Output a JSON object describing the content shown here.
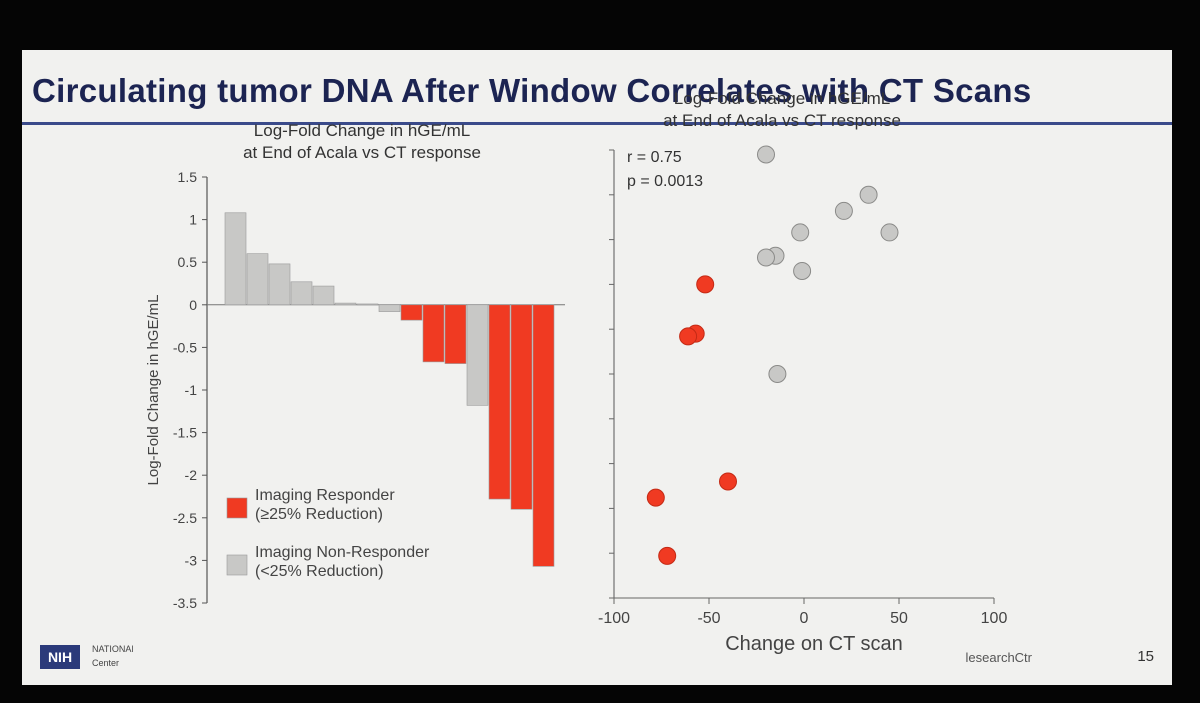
{
  "slide": {
    "title": "Circulating tumor DNA After Window Correlates with CT Scans",
    "page_number": "15",
    "footer_logo": "NIH",
    "footer_org_line1": "NATIONAl",
    "footer_org_line2": "Center",
    "footer_handle": "lesearchCtr",
    "colors": {
      "responder": "#f03a22",
      "non_responder": "#c8c8c6",
      "title": "#1c2452"
    }
  },
  "chart_data": [
    {
      "type": "bar",
      "title_line1": "Log-Fold Change in hGE/mL",
      "title_line2": "at End of Acala vs CT response",
      "xlabel": "",
      "ylabel": "Log-Fold Change in hGE/mL",
      "ylim": [
        -3.5,
        1.5
      ],
      "yticks": [
        "1.5",
        "1",
        "0.5",
        "0",
        "-0.5",
        "-1",
        "-1.5",
        "-2",
        "-2.5",
        "-3",
        "-3.5"
      ],
      "bars": [
        {
          "value": 1.08,
          "group": "non_responder"
        },
        {
          "value": 0.6,
          "group": "non_responder"
        },
        {
          "value": 0.48,
          "group": "non_responder"
        },
        {
          "value": 0.27,
          "group": "non_responder"
        },
        {
          "value": 0.22,
          "group": "non_responder"
        },
        {
          "value": 0.02,
          "group": "non_responder"
        },
        {
          "value": 0.01,
          "group": "non_responder"
        },
        {
          "value": -0.08,
          "group": "non_responder"
        },
        {
          "value": -0.18,
          "group": "responder"
        },
        {
          "value": -0.67,
          "group": "responder"
        },
        {
          "value": -0.69,
          "group": "responder"
        },
        {
          "value": -1.18,
          "group": "non_responder"
        },
        {
          "value": -2.28,
          "group": "responder"
        },
        {
          "value": -2.4,
          "group": "responder"
        },
        {
          "value": -3.07,
          "group": "responder"
        }
      ],
      "legend": [
        {
          "group": "responder",
          "label_line1": "Imaging Responder",
          "label_line2": "(≥25% Reduction)"
        },
        {
          "group": "non_responder",
          "label_line1": "Imaging Non-Responder",
          "label_line2": "(<25% Reduction)"
        }
      ],
      "legend_position": "bottom-left",
      "grid": false
    },
    {
      "type": "scatter",
      "title_line1": "Log-Fold Change in hGE/mL",
      "title_line2": "at End of Acala vs CT response",
      "xlabel": "Change on CT scan",
      "ylabel": "",
      "xlim": [
        -100,
        100
      ],
      "ylim": [
        -3.5,
        1.5
      ],
      "xticks": [
        "-100",
        "-50",
        "0",
        "50",
        "100"
      ],
      "annotation_r": "r = 0.75",
      "annotation_p": "p = 0.0013",
      "points": [
        {
          "x": -20,
          "y": 1.45,
          "group": "non_responder"
        },
        {
          "x": 34,
          "y": 1.0,
          "group": "non_responder"
        },
        {
          "x": 21,
          "y": 0.82,
          "group": "non_responder"
        },
        {
          "x": -2,
          "y": 0.58,
          "group": "non_responder"
        },
        {
          "x": 45,
          "y": 0.58,
          "group": "non_responder"
        },
        {
          "x": -15,
          "y": 0.32,
          "group": "non_responder"
        },
        {
          "x": -20,
          "y": 0.3,
          "group": "non_responder"
        },
        {
          "x": -1,
          "y": 0.15,
          "group": "non_responder"
        },
        {
          "x": -14,
          "y": -1.0,
          "group": "non_responder"
        },
        {
          "x": -52,
          "y": 0.0,
          "group": "responder"
        },
        {
          "x": -57,
          "y": -0.55,
          "group": "responder"
        },
        {
          "x": -61,
          "y": -0.58,
          "group": "responder"
        },
        {
          "x": -40,
          "y": -2.2,
          "group": "responder"
        },
        {
          "x": -78,
          "y": -2.38,
          "group": "responder"
        },
        {
          "x": -72,
          "y": -3.03,
          "group": "responder"
        }
      ],
      "grid": false
    }
  ]
}
